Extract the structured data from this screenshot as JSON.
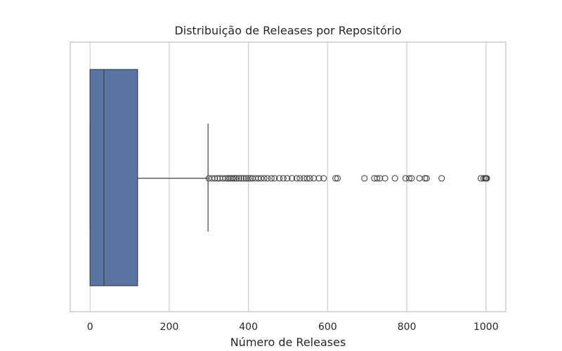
{
  "chart_data": {
    "type": "box",
    "title": "Distribuição de Releases por Repositório",
    "xlabel": "Número de Releases",
    "ylabel": "",
    "xlim": [
      -50,
      1050
    ],
    "x_ticks": [
      0,
      200,
      400,
      600,
      800,
      1000
    ],
    "x_tick_labels": [
      "0",
      "200",
      "400",
      "600",
      "800",
      "1000"
    ],
    "grid": "vertical",
    "box": {
      "min": 0,
      "q1": 0,
      "median": 35,
      "q3": 120,
      "max": 298
    },
    "outliers": [
      300,
      308,
      315,
      322,
      328,
      335,
      342,
      348,
      352,
      356,
      360,
      365,
      370,
      376,
      382,
      388,
      394,
      400,
      405,
      410,
      418,
      425,
      432,
      440,
      448,
      458,
      466,
      478,
      488,
      498,
      510,
      522,
      530,
      540,
      548,
      555,
      565,
      578,
      590,
      620,
      625,
      693,
      718,
      725,
      732,
      745,
      770,
      797,
      806,
      812,
      832,
      846,
      850,
      888,
      987,
      994,
      998,
      1000,
      1002
    ],
    "colors": {
      "box_fill": "#5875a4",
      "box_edge": "#3f3f3f",
      "grid": "#cccccc",
      "frame": "#cccccc"
    }
  }
}
